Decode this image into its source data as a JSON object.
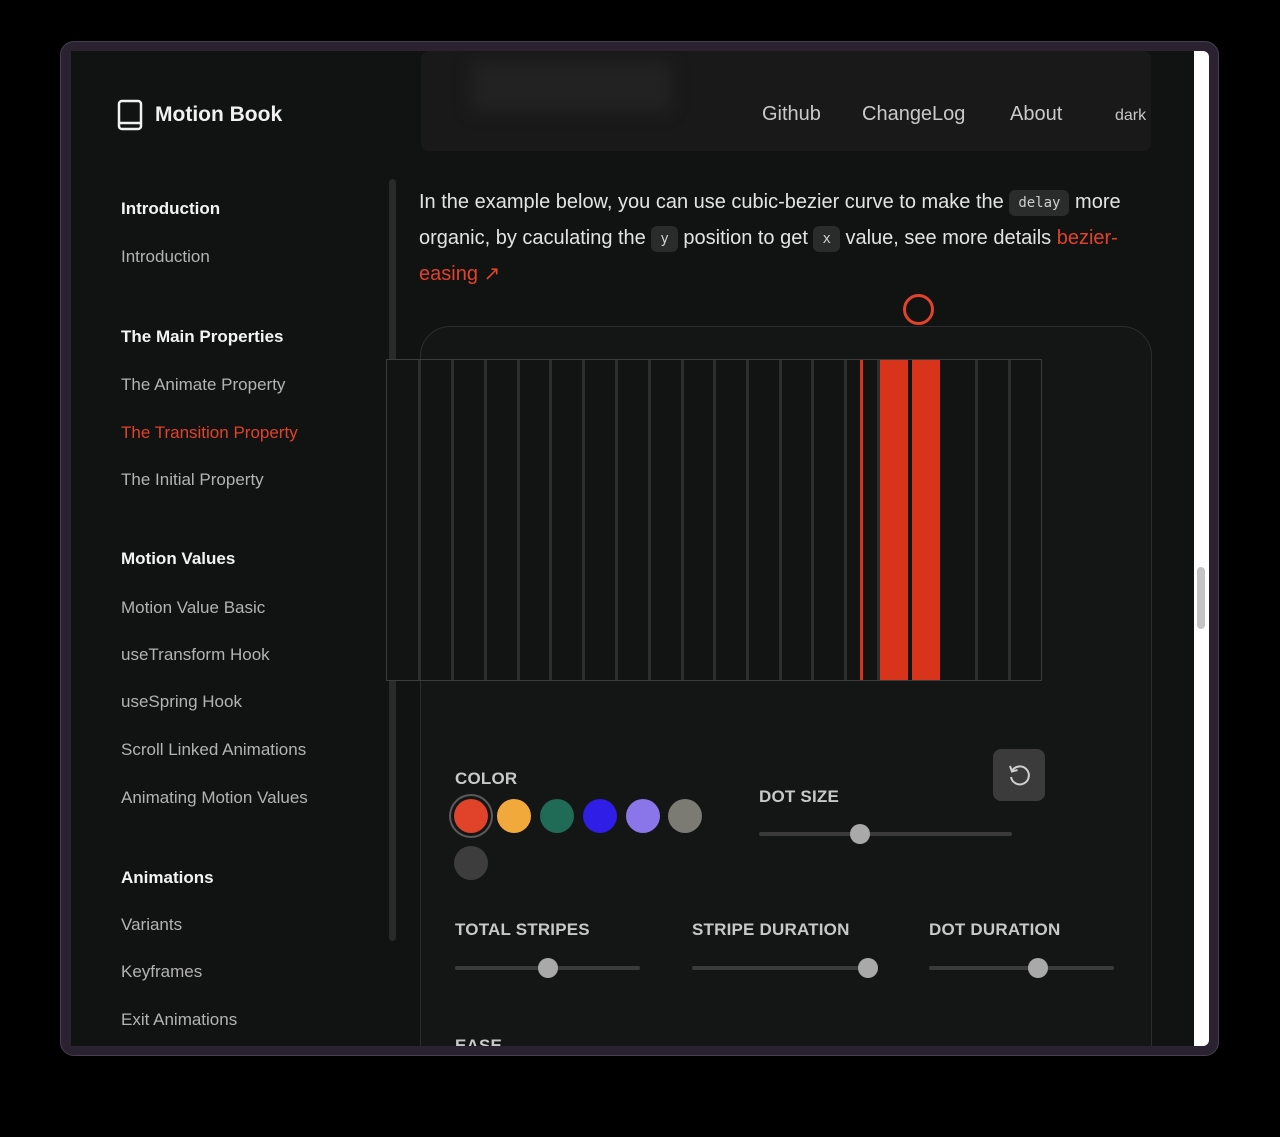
{
  "app": {
    "title": "Motion Book",
    "nav": [
      "Github",
      "ChangeLog",
      "About"
    ],
    "theme_toggle": "dark"
  },
  "sidebar": {
    "sections": [
      {
        "heading": "Introduction",
        "items": [
          "Introduction"
        ]
      },
      {
        "heading": "The Main Properties",
        "items": [
          "The Animate Property",
          "The Transition Property",
          "The Initial Property"
        ]
      },
      {
        "heading": "Motion Values",
        "items": [
          "Motion Value Basic",
          "useTransform Hook",
          "useSpring Hook",
          "Scroll Linked Animations",
          "Animating Motion Values"
        ]
      },
      {
        "heading": "Animations",
        "items": [
          "Variants",
          "Keyframes",
          "Exit Animations"
        ]
      }
    ],
    "active_item": "The Transition Property"
  },
  "content": {
    "p1": "In the example below, you can use cubic-bezier curve to make the",
    "code1": "delay",
    "p2": "more organic, by caculating the",
    "code2": "y",
    "p3": "position to get",
    "code3": "x",
    "p4": "value, see more details",
    "link": "bezier-easing ↗"
  },
  "controls": {
    "color_label": "COLOR",
    "dot_size_label": "DOT SIZE",
    "total_stripes_label": "TOTAL STRIPES",
    "stripe_duration_label": "STRIPE DURATION",
    "dot_duration_label": "DOT DURATION",
    "ease_label": "EASE",
    "colors": [
      "#e0422a",
      "#f2a93b",
      "#1f6b55",
      "#2f1ee6",
      "#8a76e8",
      "#7b7b73",
      "#3d3d3d"
    ],
    "selected_color": "#e0422a",
    "dot_size_value": 0.4,
    "total_stripes_value": 0.5,
    "stripe_duration_value": 0.95,
    "dot_duration_value": 0.59
  },
  "colors": {
    "accent": "#e0422a",
    "background": "#111212"
  }
}
